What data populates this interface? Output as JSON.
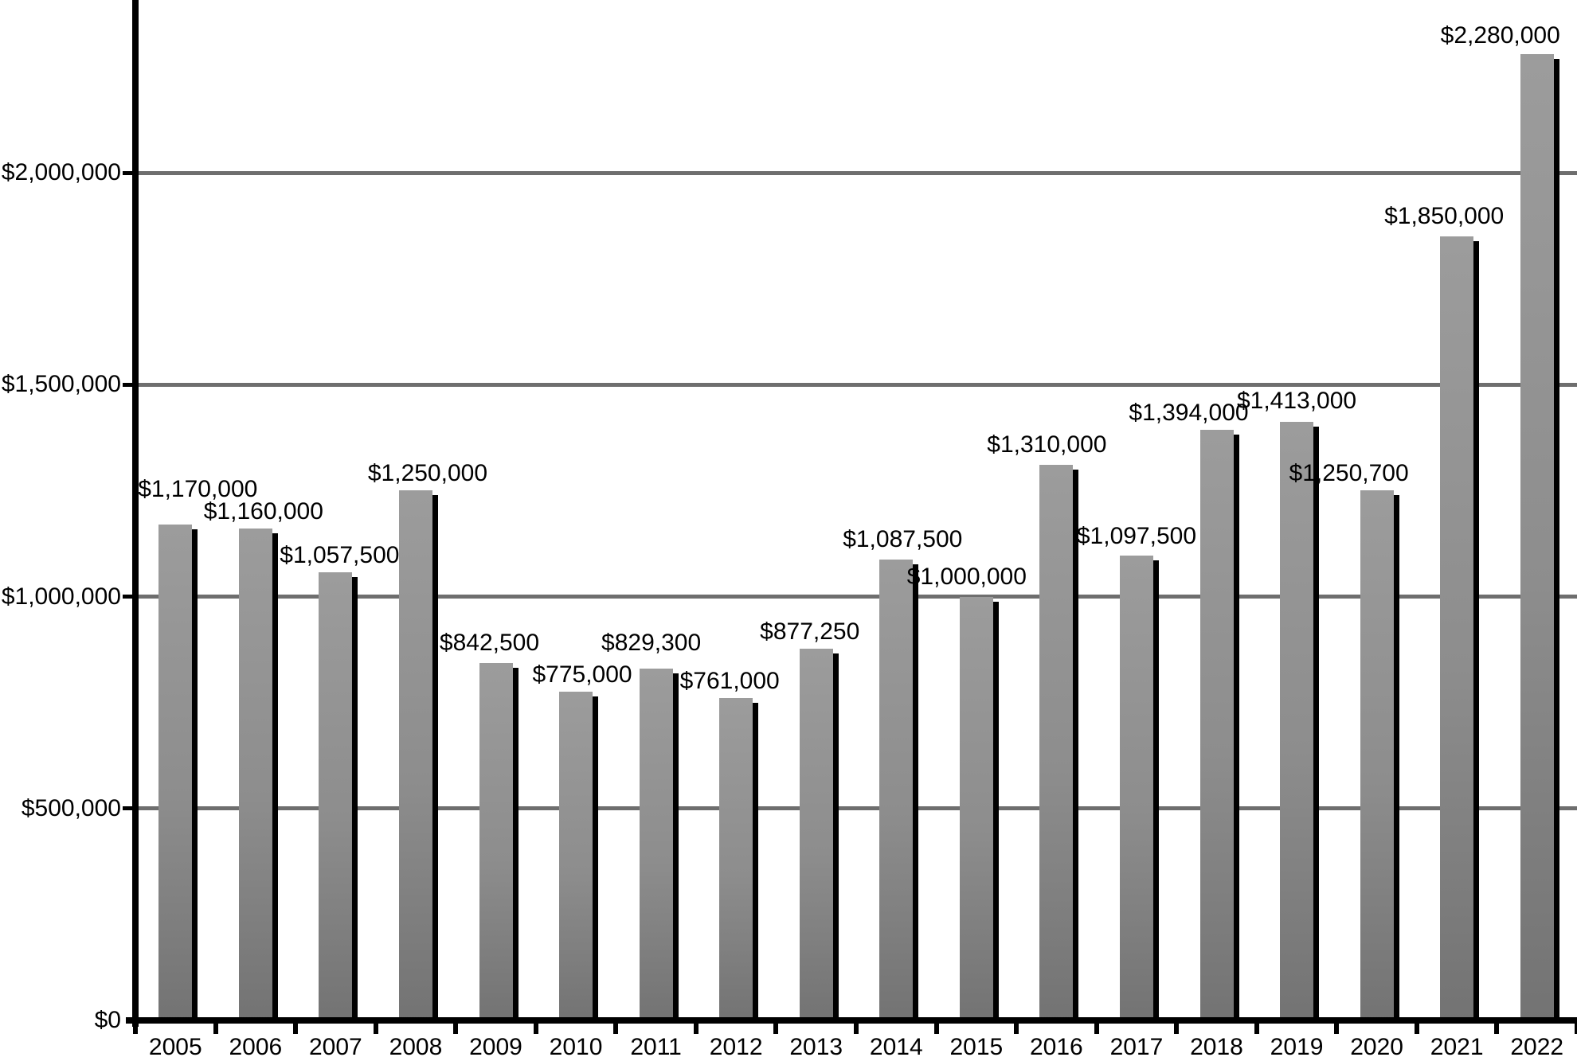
{
  "chart_data": {
    "type": "bar",
    "title": "",
    "xlabel": "",
    "ylabel": "",
    "legend": "none",
    "grid": "horizontal",
    "ylim": [
      0,
      2407500
    ],
    "categories": [
      "2005",
      "2006",
      "2007",
      "2008",
      "2009",
      "2010",
      "2011",
      "2012",
      "2013",
      "2014",
      "2015",
      "2016",
      "2017",
      "2018",
      "2019",
      "2020",
      "2021",
      "2022"
    ],
    "values": [
      1170000,
      1160000,
      1057500,
      1250000,
      842500,
      775000,
      829300,
      761000,
      877250,
      1087500,
      1000000,
      1310000,
      1097500,
      1394000,
      1413000,
      1250700,
      1850000,
      2280000
    ],
    "value_labels": [
      "$1,170,000",
      "$1,160,000",
      "$1,057,500",
      "$1,250,000",
      "$842,500",
      "$775,000",
      "$829,300",
      "$761,000",
      "$877,250",
      "$1,087,500",
      "$1,000,000",
      "$1,310,000",
      "$1,097,500",
      "$1,394,000",
      "$1,413,000",
      "$1,250,700",
      "$1,850,000",
      "$2,280,000"
    ],
    "y_axis_ticks": [
      {
        "value": 0,
        "label": "$0"
      },
      {
        "value": 500000,
        "label": "$500,000"
      },
      {
        "value": 1000000,
        "label": "$1,000,000"
      },
      {
        "value": 1500000,
        "label": "$1,500,000"
      },
      {
        "value": 2000000,
        "label": "$2,000,000"
      }
    ],
    "colors": {
      "bar_top": "#9c9c9c",
      "bar_bottom": "#737373",
      "bar_shadow": "#000000",
      "gridline": "#6e6e6e",
      "axis": "#000000",
      "text": "#000000",
      "background": "#ffffff"
    }
  }
}
